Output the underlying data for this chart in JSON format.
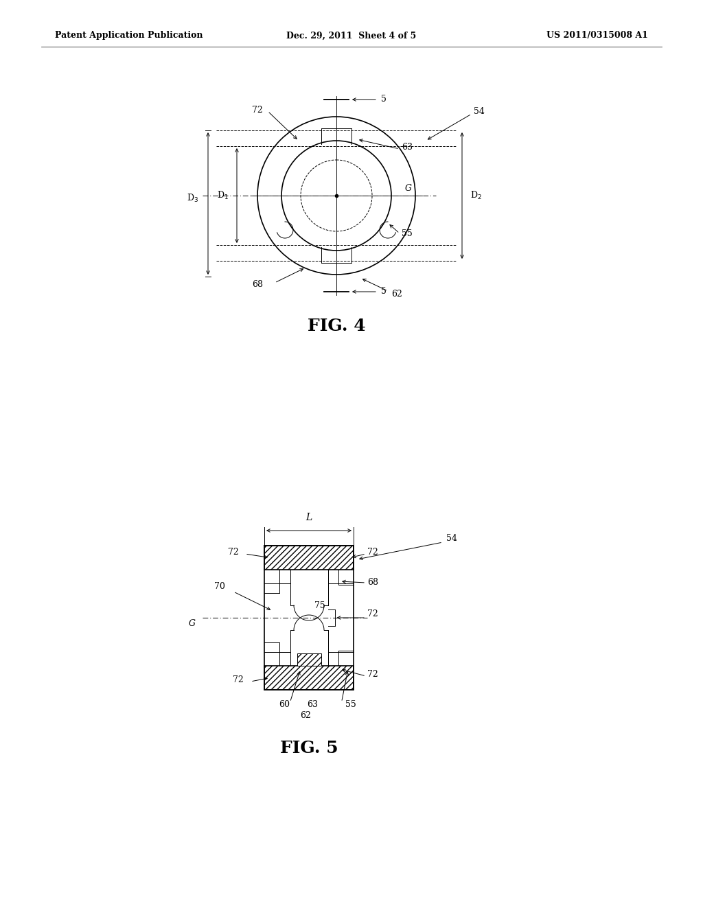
{
  "background_color": "#ffffff",
  "header_left": "Patent Application Publication",
  "header_center": "Dec. 29, 2011  Sheet 4 of 5",
  "header_right": "US 2011/0315008 A1",
  "fig4_label": "FIG. 4",
  "fig5_label": "FIG. 5",
  "line_color": "#000000",
  "lw": 1.2,
  "tlw": 0.7
}
